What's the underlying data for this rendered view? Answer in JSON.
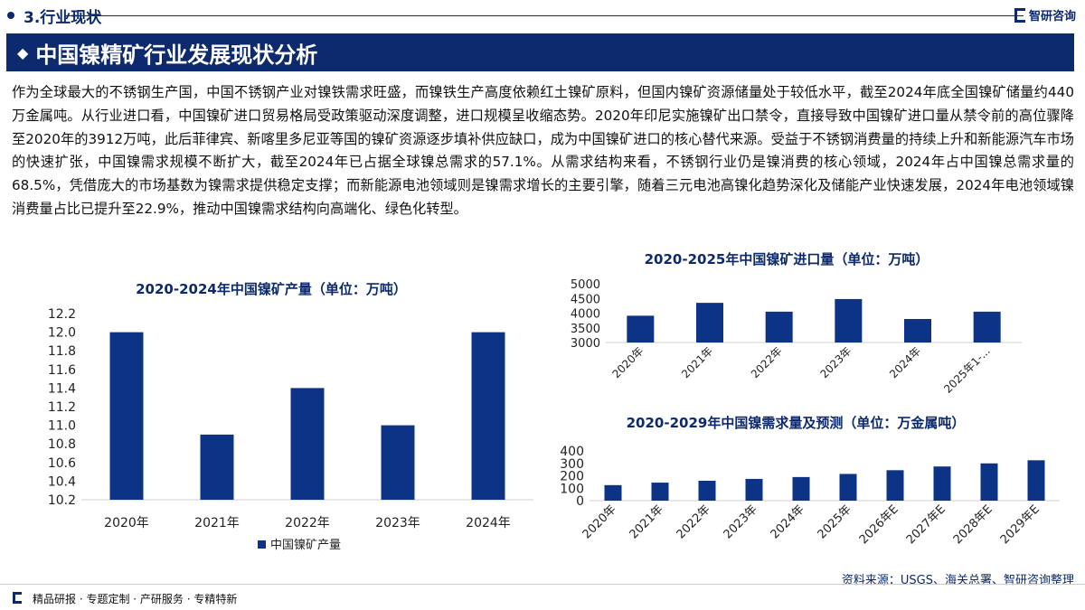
{
  "header": {
    "section": "3.行业现状",
    "logo": "智研咨询"
  },
  "title": "中国镍精矿行业发展现状分析",
  "paragraph": "作为全球最大的不锈钢生产国，中国不锈钢产业对镍铁需求旺盛，而镍铁生产高度依赖红土镍矿原料，但国内镍矿资源储量处于较低水平，截至2024年底全国镍矿储量约440万金属吨。从行业进口看，中国镍矿进口贸易格局受政策驱动深度调整，进口规模呈收缩态势。2020年印尼实施镍矿出口禁令，直接导致中国镍矿进口量从禁令前的高位骤降至2020年的3912万吨，此后菲律宾、新喀里多尼亚等国的镍矿资源逐步填补供应缺口，成为中国镍矿进口的核心替代来源。受益于不锈钢消费量的持续上升和新能源汽车市场的快速扩张，中国镍需求规模不断扩大，截至2024年已占据全球镍总需求的57.1%。从需求结构来看，不锈钢行业仍是镍消费的核心领域，2024年占中国镍总需求量的68.5%，凭借庞大的市场基数为镍需求提供稳定支撑；而新能源电池领域则是镍需求增长的主要引擎，随着三元电池高镍化趋势深化及储能产业快速发展，2024年电池领域镍消费量占比已提升至22.9%，推动中国镍需求结构向高端化、绿色化转型。",
  "chart_data": [
    {
      "type": "bar",
      "title": "2020-2024年中国镍矿产量（单位：万吨）",
      "categories": [
        "2020年",
        "2021年",
        "2022年",
        "2023年",
        "2024年"
      ],
      "series": [
        {
          "name": "中国镍矿产量",
          "values": [
            12.0,
            10.9,
            11.4,
            11.0,
            12.0
          ]
        }
      ],
      "ylim": [
        10.2,
        12.2
      ],
      "yticks": [
        "10.2",
        "10.4",
        "10.6",
        "10.8",
        "11.0",
        "11.2",
        "11.4",
        "11.6",
        "11.8",
        "12.0",
        "12.2"
      ],
      "legend": "bottom"
    },
    {
      "type": "bar",
      "title": "2020-2025年中国镍矿进口量（单位：万吨）",
      "categories": [
        "2020年",
        "2021年",
        "2022年",
        "2023年",
        "2024年",
        "2025年1-..."
      ],
      "values": [
        3912,
        4350,
        4050,
        4480,
        3800,
        4050
      ],
      "ylim": [
        3000,
        5000
      ],
      "yticks": [
        "3000",
        "3500",
        "4000",
        "4500",
        "5000"
      ]
    },
    {
      "type": "bar",
      "title": "2020-2029年中国镍需求量及预测（单位：万金属吨）",
      "categories": [
        "2020年",
        "2021年",
        "2022年",
        "2023年",
        "2024年",
        "2025年",
        "2026年E",
        "2027年E",
        "2028年E",
        "2029年E"
      ],
      "values": [
        125,
        145,
        160,
        175,
        190,
        215,
        245,
        275,
        300,
        325
      ],
      "ylim": [
        0,
        400
      ],
      "yticks": [
        "0",
        "100",
        "200",
        "300",
        "400"
      ]
    }
  ],
  "source": "资料来源：USGS、海关总署、智研咨询整理",
  "footer": "精品研报 · 专题定制 · 产研服务 · 专精特新",
  "colors": {
    "bar": "#0d3386",
    "brand": "#0d2a6e"
  }
}
